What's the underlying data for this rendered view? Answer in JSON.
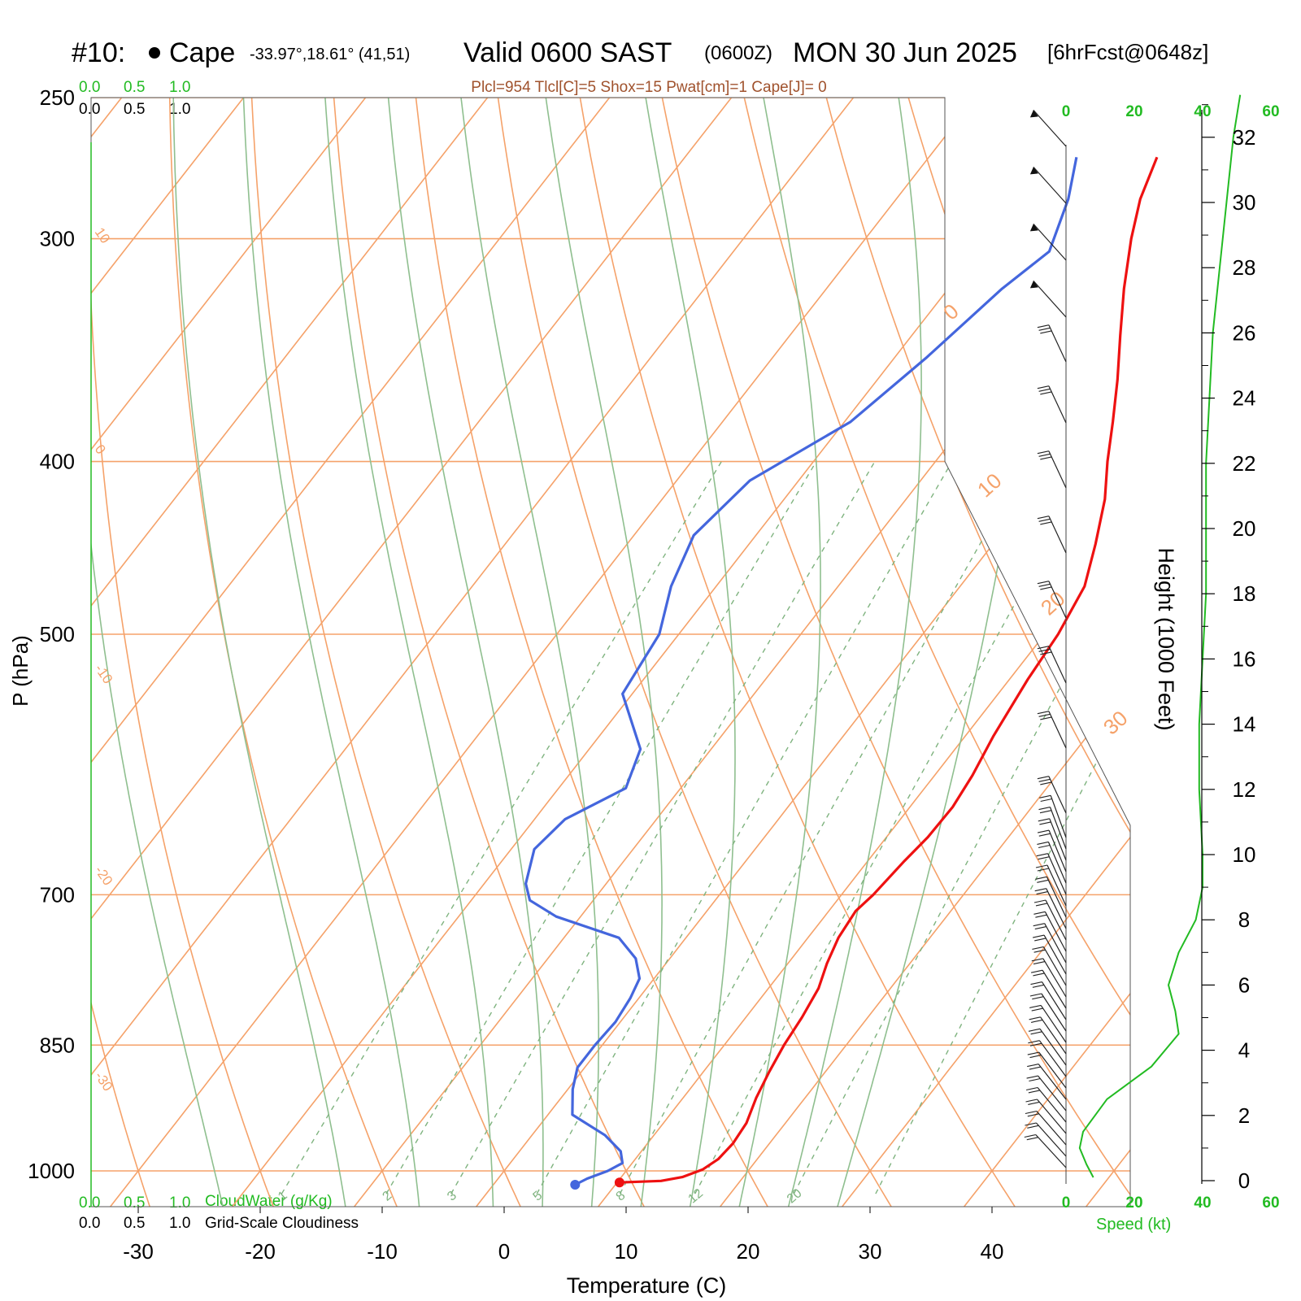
{
  "title": {
    "prefix": "#10:",
    "location": "Cape",
    "coords": "-33.97°,18.61° (41,51)",
    "valid": "Valid 0600 SAST",
    "zulu": "(0600Z)",
    "date": "MON 30 Jun 2025",
    "forecast": "[6hrFcst@0648z]"
  },
  "indices": "Plcl=954 Tlcl[C]=5 Shox=15 Pwat[cm]=1 Cape[J]= 0",
  "cloud_scale": {
    "top_green": [
      "0.0",
      "0.5",
      "1.0"
    ],
    "top_black": [
      "0.0",
      "0.5",
      "1.0"
    ],
    "bottom_green": [
      "0.0",
      "0.5",
      "1.0"
    ],
    "bottom_black": [
      "0.0",
      "0.5",
      "1.0"
    ],
    "cloudwater_label": "CloudWater (g/Kg)",
    "cloudiness_label": "Grid-Scale Cloudiness"
  },
  "speed_axis": {
    "ticks": [
      "0",
      "20",
      "40",
      "60"
    ],
    "label": "Speed (kt)"
  },
  "colors": {
    "temperature": "#ee1111",
    "dewpoint": "#4466dd",
    "isotherm": "#f5a26a",
    "dry_adiabat": "#f5a26a",
    "moist_adiabat": "#8fbf8f",
    "mixing_ratio": "#7fb37f",
    "speed": "#22bb22"
  },
  "chart_data": {
    "type": "line",
    "xlabel": "Temperature (C)",
    "ylabel": "P (hPa)",
    "y2label": "Height (1000 Feet)",
    "xlim": [
      -34,
      36
    ],
    "ylim": [
      1030,
      250
    ],
    "log_scale": true,
    "x_ticks": [
      -30,
      -20,
      -10,
      0,
      10,
      20,
      30,
      40
    ],
    "y_ticks": [
      250,
      300,
      400,
      500,
      700,
      850,
      1000
    ],
    "height_ticks": [
      0,
      2,
      4,
      6,
      8,
      10,
      12,
      14,
      16,
      18,
      20,
      22,
      24,
      26,
      28,
      30,
      32
    ],
    "isotherm_labels": [
      "10",
      "0",
      "-10",
      "-20",
      "-30"
    ],
    "right_temp_labels": [
      "0",
      "10",
      "20",
      "30"
    ],
    "mixing_ratio_labels": [
      "1",
      "2",
      "3",
      "5",
      "8",
      "12",
      "20"
    ],
    "series": [
      {
        "name": "Temperature",
        "points": [
          [
            1015,
            10.2
          ],
          [
            1013,
            13.5
          ],
          [
            1008,
            15
          ],
          [
            998,
            16.2
          ],
          [
            985,
            16.8
          ],
          [
            965,
            17.0
          ],
          [
            940,
            16.8
          ],
          [
            910,
            16.0
          ],
          [
            880,
            15.4
          ],
          [
            850,
            14.9
          ],
          [
            820,
            14.6
          ],
          [
            790,
            14.1
          ],
          [
            765,
            13.2
          ],
          [
            740,
            12.5
          ],
          [
            715,
            12.2
          ],
          [
            700,
            12.6
          ],
          [
            670,
            13.0
          ],
          [
            650,
            13.4
          ],
          [
            625,
            13.5
          ],
          [
            600,
            13.1
          ],
          [
            570,
            12.3
          ],
          [
            530,
            11.5
          ],
          [
            500,
            11.1
          ],
          [
            470,
            10.2
          ],
          [
            445,
            8.4
          ],
          [
            420,
            6.3
          ],
          [
            400,
            4.1
          ],
          [
            380,
            2.0
          ],
          [
            360,
            -0.3
          ],
          [
            340,
            -2.9
          ],
          [
            320,
            -5.6
          ],
          [
            300,
            -8.2
          ],
          [
            285,
            -10.0
          ],
          [
            270,
            -11.3
          ]
        ]
      },
      {
        "name": "Dewpoint",
        "points": [
          [
            1018,
            6.7
          ],
          [
            1010,
            7.3
          ],
          [
            1000,
            8.5
          ],
          [
            990,
            9.2
          ],
          [
            975,
            8.3
          ],
          [
            955,
            6.0
          ],
          [
            930,
            2.0
          ],
          [
            900,
            0.4
          ],
          [
            875,
            -0.6
          ],
          [
            850,
            -0.6
          ],
          [
            825,
            -0.4
          ],
          [
            800,
            -0.7
          ],
          [
            780,
            -1.2
          ],
          [
            760,
            -2.8
          ],
          [
            740,
            -5.5
          ],
          [
            720,
            -12.0
          ],
          [
            705,
            -15.2
          ],
          [
            690,
            -16.6
          ],
          [
            660,
            -18.1
          ],
          [
            635,
            -17.5
          ],
          [
            610,
            -14.5
          ],
          [
            580,
            -15.8
          ],
          [
            540,
            -20.8
          ],
          [
            500,
            -21.6
          ],
          [
            470,
            -23.7
          ],
          [
            440,
            -25.1
          ],
          [
            410,
            -24.0
          ],
          [
            380,
            -19.5
          ],
          [
            350,
            -17.4
          ],
          [
            320,
            -15.6
          ],
          [
            305,
            -14.1
          ],
          [
            285,
            -15.9
          ],
          [
            270,
            -17.9
          ]
        ]
      }
    ],
    "wind_speed": {
      "heights": [
        0.1,
        0.5,
        1.0,
        1.5,
        2.5,
        3.5,
        4.5,
        5.2,
        6.0,
        7.0,
        8.0,
        9.0,
        10.0,
        12.0,
        14.0,
        16.0,
        18.0,
        20.0,
        22.0,
        24.0,
        26.0,
        28.0,
        30.0,
        32.0,
        33.3
      ],
      "speeds": [
        8,
        6,
        4,
        5,
        12,
        25,
        33,
        32,
        30,
        33,
        38,
        40,
        40,
        39,
        39,
        40,
        41,
        41,
        41,
        42,
        43,
        45,
        47,
        49,
        51
      ]
    }
  }
}
